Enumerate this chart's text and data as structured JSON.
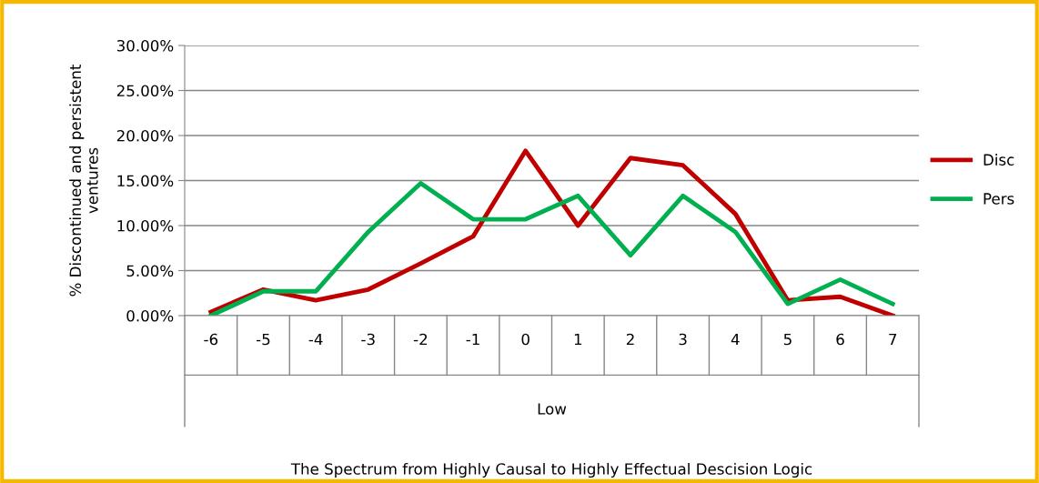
{
  "chart_data": {
    "type": "line",
    "categories": [
      "-6",
      "-5",
      "-4",
      "-3",
      "-2",
      "-1",
      "0",
      "1",
      "2",
      "3",
      "4",
      "5",
      "6",
      "7"
    ],
    "series": [
      {
        "name": "Disc",
        "color": "#c00000",
        "values": [
          0.4,
          2.9,
          1.7,
          2.9,
          5.8,
          8.8,
          18.3,
          10.0,
          17.5,
          16.7,
          11.3,
          1.7,
          2.1,
          0
        ]
      },
      {
        "name": "Pers",
        "color": "#00b050",
        "values": [
          0,
          2.7,
          2.7,
          9.3,
          14.7,
          10.7,
          10.7,
          13.3,
          6.7,
          13.3,
          9.3,
          1.3,
          4.0,
          1.3
        ]
      }
    ],
    "ylim": [
      0,
      30
    ],
    "yticks": [
      {
        "value": 0,
        "label": "0.00%"
      },
      {
        "value": 5,
        "label": "5.00%"
      },
      {
        "value": 10,
        "label": "10.00%"
      },
      {
        "value": 15,
        "label": "15.00%"
      },
      {
        "value": 20,
        "label": "20.00%"
      },
      {
        "value": 25,
        "label": "25.00%"
      },
      {
        "value": 30,
        "label": "30.00%"
      }
    ],
    "ylabel": "% Discontinued and persistent\nventures",
    "annotations": [
      "Low",
      "The Spectrum from Highly Causal to Highly Effectual Descision Logic"
    ],
    "grid": "y",
    "legend": "right",
    "marker": "none",
    "line_style": "solid"
  }
}
